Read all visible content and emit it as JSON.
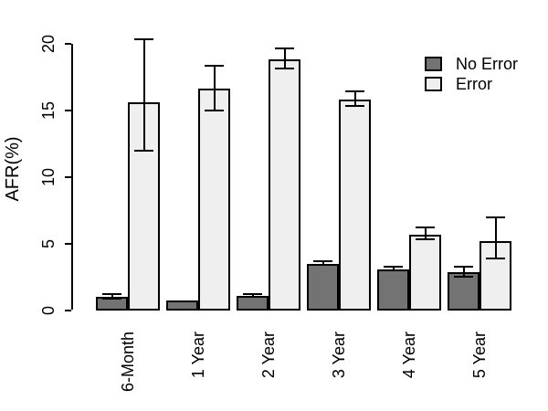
{
  "figure": {
    "background": "#ffffff",
    "axis_color": "#000000",
    "bar_border_color": "#000000"
  },
  "chart_data": {
    "type": "bar",
    "title": "",
    "xlabel": "",
    "ylabel": "AFR(%)",
    "ylim": [
      0,
      20
    ],
    "yticks": [
      0,
      5,
      10,
      15,
      20
    ],
    "grid": false,
    "legend_position": "top-right",
    "categories": [
      "6-Month",
      "1 Year",
      "2 Year",
      "3 Year",
      "4 Year",
      "5 Year"
    ],
    "series": [
      {
        "name": "No Error",
        "color": "#737373",
        "values": [
          1.0,
          0.75,
          1.1,
          3.5,
          3.1,
          2.9
        ],
        "error_low": [
          0.9,
          0.75,
          1.0,
          3.4,
          3.0,
          2.5
        ],
        "error_high": [
          1.2,
          0.75,
          1.2,
          3.7,
          3.3,
          3.3
        ]
      },
      {
        "name": "Error",
        "color": "#efefef",
        "values": [
          15.6,
          16.6,
          18.8,
          15.8,
          5.7,
          5.2
        ],
        "error_low": [
          12.0,
          15.0,
          18.1,
          15.3,
          5.3,
          3.9
        ],
        "error_high": [
          20.3,
          18.3,
          19.6,
          16.4,
          6.2,
          7.0
        ]
      }
    ]
  }
}
